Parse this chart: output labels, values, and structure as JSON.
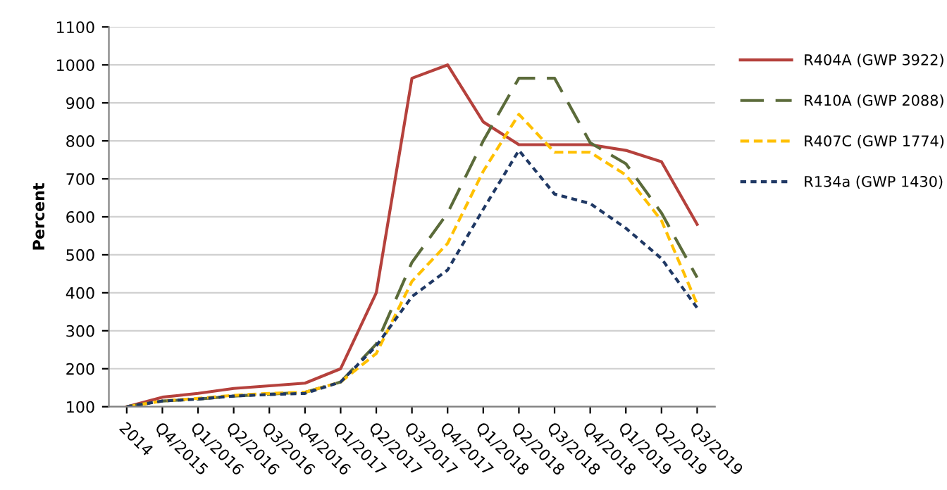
{
  "chart_data": {
    "type": "line",
    "ylabel": "Percent",
    "ylim": [
      100,
      1100
    ],
    "yticks": [
      100,
      200,
      300,
      400,
      500,
      600,
      700,
      800,
      900,
      1000,
      1100
    ],
    "grid": "y",
    "legend": "right",
    "marker": "none",
    "categories": [
      "2014",
      "Q4/2015",
      "Q1/2016",
      "Q2/2016",
      "Q3/2016",
      "Q4/2016",
      "Q1/2017",
      "Q2/2017",
      "Q3/2017",
      "Q4/2017",
      "Q1/2018",
      "Q2/2018",
      "Q3/2018",
      "Q4/2018",
      "Q1/2019",
      "Q2/2019",
      "Q3/2019"
    ],
    "series": [
      {
        "name": "R404A (GWP 3922)",
        "color": "#b5413c",
        "line_style": "solid",
        "values": [
          100,
          125,
          135,
          148,
          155,
          162,
          200,
          400,
          965,
          1000,
          850,
          790,
          790,
          790,
          775,
          745,
          580
        ]
      },
      {
        "name": "R410A (GWP 2088)",
        "color": "#5b6b3a",
        "line_style": "longdash",
        "values": [
          100,
          115,
          120,
          128,
          133,
          138,
          165,
          265,
          480,
          610,
          800,
          965,
          965,
          795,
          740,
          610,
          440
        ]
      },
      {
        "name": "R407C (GWP 1774)",
        "color": "#ffc000",
        "line_style": "dashed",
        "values": [
          100,
          115,
          122,
          130,
          135,
          138,
          165,
          240,
          430,
          530,
          720,
          870,
          770,
          770,
          710,
          590,
          370
        ]
      },
      {
        "name": "R134a (GWP 1430)",
        "color": "#1f3864",
        "line_style": "dotted",
        "values": [
          100,
          115,
          120,
          128,
          132,
          135,
          165,
          260,
          390,
          460,
          620,
          775,
          660,
          635,
          570,
          490,
          360
        ]
      }
    ]
  }
}
